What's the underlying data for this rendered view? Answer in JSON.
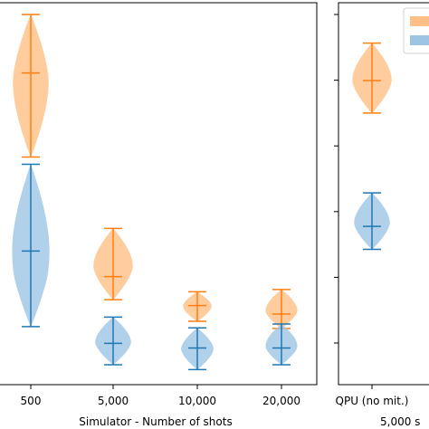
{
  "chart_data": [
    {
      "type": "violin",
      "panel": "simulator",
      "xlabel": "Simulator - Number of shots",
      "categories": [
        "500",
        "5,000",
        "10,000",
        "20,000"
      ],
      "ylim": [
        0,
        1
      ],
      "series": [
        {
          "color": "#ff7f0e",
          "fill_color": "#ffbf86",
          "stats": [
            {
              "min": 0.566,
              "median": 0.822,
              "max": 1.0
            },
            {
              "min": 0.132,
              "median": 0.202,
              "max": 0.349
            },
            {
              "min": 0.066,
              "median": 0.114,
              "max": 0.156
            },
            {
              "min": 0.044,
              "median": 0.088,
              "max": 0.163
            }
          ]
        },
        {
          "color": "#1f77b4",
          "fill_color": "#9ec4e4",
          "stats": [
            {
              "min": 0.05,
              "median": 0.28,
              "max": 0.544
            },
            {
              "min": -0.066,
              "median": -0.001,
              "max": 0.079
            },
            {
              "min": -0.081,
              "median": -0.015,
              "max": 0.046
            },
            {
              "min": -0.066,
              "median": -0.015,
              "max": 0.058
            }
          ]
        }
      ]
    },
    {
      "type": "violin",
      "panel": "qpu",
      "xlabel": "5,000 s",
      "categories": [
        "QPU (no mit.)"
      ],
      "ylim": [
        0,
        1
      ],
      "series": [
        {
          "color": "#ff7f0e",
          "fill_color": "#ffbf86",
          "stats": [
            {
              "min": 0.7,
              "median": 0.799,
              "max": 0.913
            }
          ]
        },
        {
          "color": "#1f77b4",
          "fill_color": "#9ec4e4",
          "stats": [
            {
              "min": 0.285,
              "median": 0.355,
              "max": 0.457
            }
          ]
        }
      ]
    }
  ]
}
